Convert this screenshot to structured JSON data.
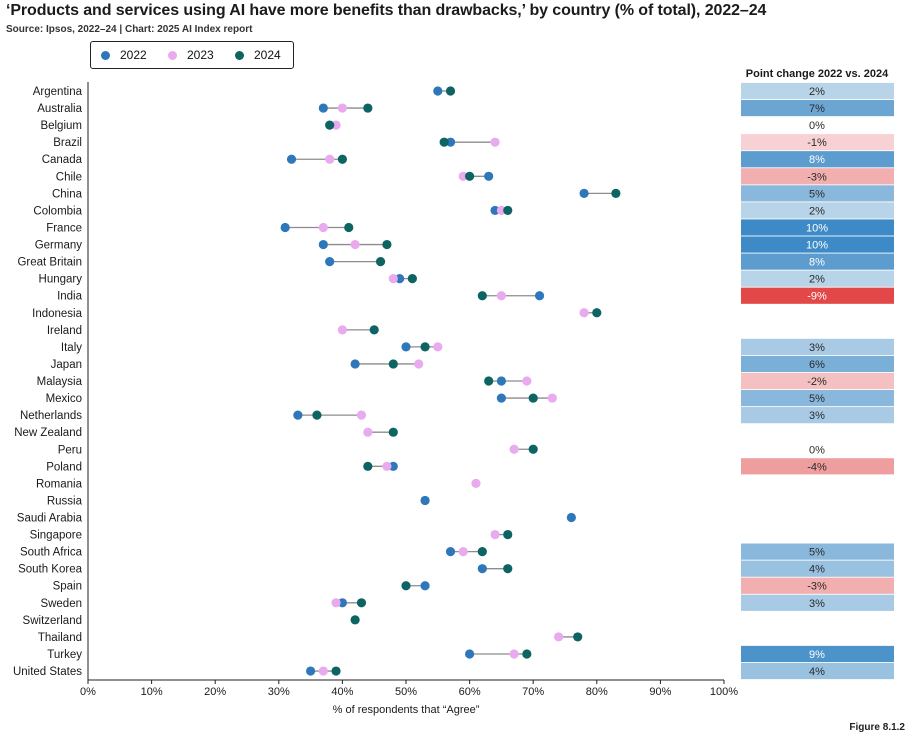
{
  "title": "‘Products and services using AI have more benefits than drawbacks,’ by country (% of total), 2022–24",
  "source": "Source: Ipsos, 2022–24 | Chart: 2025 AI Index report",
  "figure_label": "Figure 8.1.2",
  "legend": [
    {
      "label": "2022",
      "color": "#2e77bb"
    },
    {
      "label": "2023",
      "color": "#e9aaef"
    },
    {
      "label": "2024",
      "color": "#0d6462"
    }
  ],
  "chart_data": {
    "type": "dumbbell",
    "title": "‘Products and services using AI have more benefits than drawbacks,’ by country (% of total), 2022–24",
    "xlabel": "% of respondents that “Agree”",
    "xlim": [
      0,
      100
    ],
    "xticks": [
      "0%",
      "10%",
      "20%",
      "30%",
      "40%",
      "50%",
      "60%",
      "70%",
      "80%",
      "90%",
      "100%"
    ],
    "series_names": [
      "2022",
      "2023",
      "2024"
    ],
    "change_header": "Point change 2022 vs. 2024",
    "countries": [
      {
        "name": "Argentina",
        "y2022": 55,
        "y2023": null,
        "y2024": 57,
        "change": "2%",
        "change_value": 2
      },
      {
        "name": "Australia",
        "y2022": 37,
        "y2023": 40,
        "y2024": 44,
        "change": "7%",
        "change_value": 7
      },
      {
        "name": "Belgium",
        "y2022": null,
        "y2023": 39,
        "y2024": 38,
        "change": "0%",
        "change_value": 0
      },
      {
        "name": "Brazil",
        "y2022": 57,
        "y2023": 64,
        "y2024": 56,
        "change": "-1%",
        "change_value": -1
      },
      {
        "name": "Canada",
        "y2022": 32,
        "y2023": 38,
        "y2024": 40,
        "change": "8%",
        "change_value": 8
      },
      {
        "name": "Chile",
        "y2022": 63,
        "y2023": 59,
        "y2024": 60,
        "change": "-3%",
        "change_value": -3
      },
      {
        "name": "China",
        "y2022": 78,
        "y2023": null,
        "y2024": 83,
        "change": "5%",
        "change_value": 5
      },
      {
        "name": "Colombia",
        "y2022": 64,
        "y2023": 65,
        "y2024": 66,
        "change": "2%",
        "change_value": 2
      },
      {
        "name": "France",
        "y2022": 31,
        "y2023": 37,
        "y2024": 41,
        "change": "10%",
        "change_value": 10
      },
      {
        "name": "Germany",
        "y2022": 37,
        "y2023": 42,
        "y2024": 47,
        "change": "10%",
        "change_value": 10
      },
      {
        "name": "Great Britain",
        "y2022": 38,
        "y2023": null,
        "y2024": 46,
        "change": "8%",
        "change_value": 8
      },
      {
        "name": "Hungary",
        "y2022": 49,
        "y2023": 48,
        "y2024": 51,
        "change": "2%",
        "change_value": 2
      },
      {
        "name": "India",
        "y2022": 71,
        "y2023": 65,
        "y2024": 62,
        "change": "-9%",
        "change_value": -9
      },
      {
        "name": "Indonesia",
        "y2022": null,
        "y2023": 78,
        "y2024": 80,
        "change": null,
        "change_value": null
      },
      {
        "name": "Ireland",
        "y2022": null,
        "y2023": 40,
        "y2024": 45,
        "change": null,
        "change_value": null
      },
      {
        "name": "Italy",
        "y2022": 50,
        "y2023": 55,
        "y2024": 53,
        "change": "3%",
        "change_value": 3
      },
      {
        "name": "Japan",
        "y2022": 42,
        "y2023": 52,
        "y2024": 48,
        "change": "6%",
        "change_value": 6
      },
      {
        "name": "Malaysia",
        "y2022": 65,
        "y2023": 69,
        "y2024": 63,
        "change": "-2%",
        "change_value": -2
      },
      {
        "name": "Mexico",
        "y2022": 65,
        "y2023": 73,
        "y2024": 70,
        "change": "5%",
        "change_value": 5
      },
      {
        "name": "Netherlands",
        "y2022": 33,
        "y2023": 43,
        "y2024": 36,
        "change": "3%",
        "change_value": 3
      },
      {
        "name": "New Zealand",
        "y2022": null,
        "y2023": 44,
        "y2024": 48,
        "change": null,
        "change_value": null
      },
      {
        "name": "Peru",
        "y2022": null,
        "y2023": 67,
        "y2024": 70,
        "change": "0%",
        "change_value": 0
      },
      {
        "name": "Poland",
        "y2022": 48,
        "y2023": 47,
        "y2024": 44,
        "change": "-4%",
        "change_value": -4
      },
      {
        "name": "Romania",
        "y2022": null,
        "y2023": 61,
        "y2024": null,
        "change": null,
        "change_value": null
      },
      {
        "name": "Russia",
        "y2022": 53,
        "y2023": null,
        "y2024": null,
        "change": null,
        "change_value": null
      },
      {
        "name": "Saudi Arabia",
        "y2022": 76,
        "y2023": null,
        "y2024": null,
        "change": null,
        "change_value": null
      },
      {
        "name": "Singapore",
        "y2022": null,
        "y2023": 64,
        "y2024": 66,
        "change": null,
        "change_value": null
      },
      {
        "name": "South Africa",
        "y2022": 57,
        "y2023": 59,
        "y2024": 62,
        "change": "5%",
        "change_value": 5
      },
      {
        "name": "South Korea",
        "y2022": 62,
        "y2023": null,
        "y2024": 66,
        "change": "4%",
        "change_value": 4
      },
      {
        "name": "Spain",
        "y2022": 53,
        "y2023": null,
        "y2024": 50,
        "change": "-3%",
        "change_value": -3
      },
      {
        "name": "Sweden",
        "y2022": 40,
        "y2023": 39,
        "y2024": 43,
        "change": "3%",
        "change_value": 3
      },
      {
        "name": "Switzerland",
        "y2022": null,
        "y2023": null,
        "y2024": 42,
        "change": null,
        "change_value": null
      },
      {
        "name": "Thailand",
        "y2022": null,
        "y2023": 74,
        "y2024": 77,
        "change": null,
        "change_value": null
      },
      {
        "name": "Turkey",
        "y2022": 60,
        "y2023": 67,
        "y2024": 69,
        "change": "9%",
        "change_value": 9
      },
      {
        "name": "United States",
        "y2022": 35,
        "y2023": 37,
        "y2024": 39,
        "change": "4%",
        "change_value": 4
      }
    ]
  }
}
